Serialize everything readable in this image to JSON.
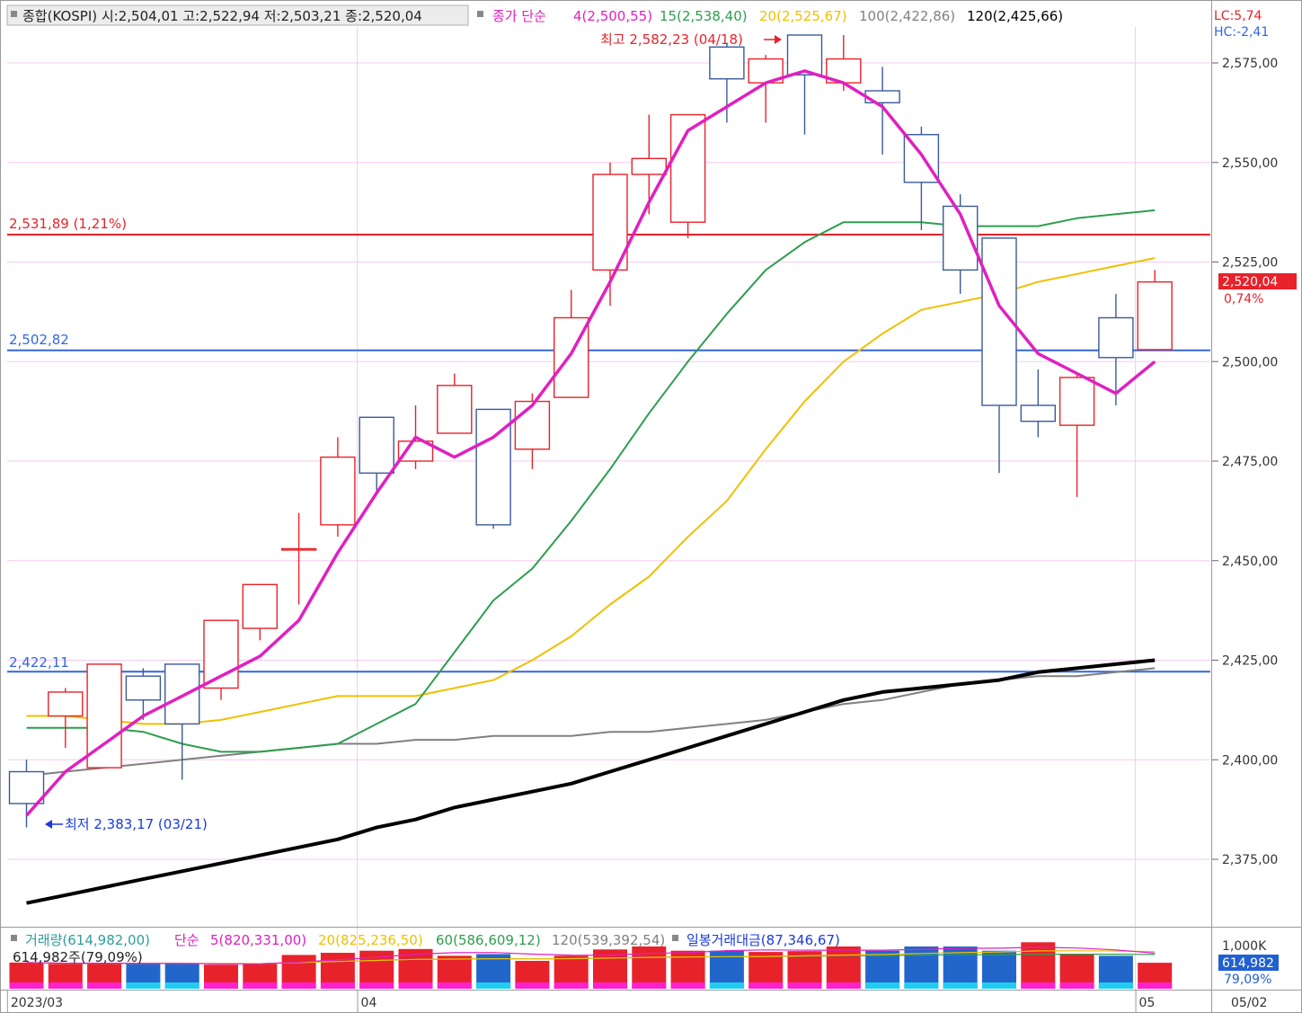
{
  "header": {
    "icon": "square-bullet-icon",
    "title": "종합(KOSPI) 시:2,504,01 고:2,522,94 저:2,503,21 종:2,520,04",
    "ma_title": "종가 단순",
    "ma_items": [
      {
        "label": "4(2,500,55)",
        "color": "#e020c0"
      },
      {
        "label": "15(2,538,40)",
        "color": "#2e9e4e"
      },
      {
        "label": "20(2,525,67)",
        "color": "#f0c000"
      },
      {
        "label": "100(2,422,86)",
        "color": "#808080"
      },
      {
        "label": "120(2,425,66)",
        "color": "#000000"
      }
    ],
    "lc": "LC:5,74",
    "hc": "HC:-2,41"
  },
  "annotations": {
    "high": "최고 2,582,23 (04/18)",
    "low": "최저 2,383,17 (03/21)",
    "red_line_label": "2,531,89 (1,21%)",
    "blue_line1_label": "2,502,82",
    "blue_line2_label": "2,422,11",
    "current_price": "2,520,04",
    "current_pct": "0,74%"
  },
  "volume_header": {
    "vol_label": "거래량(614,982,00)",
    "ma_title": "단순",
    "ma_items": [
      {
        "label": "5(820,331,00)",
        "color": "#e020c0"
      },
      {
        "label": "20(825,236,50)",
        "color": "#f0c000"
      },
      {
        "label": "60(586,609,12)",
        "color": "#2e9e4e"
      },
      {
        "label": "120(539,392,54)",
        "color": "#808080"
      }
    ],
    "amount_label": "일봉거래대금(87,346,67)",
    "shares_label": "614,982주(79,09%)",
    "axis_top": "1,000K",
    "current_vol": "614,982",
    "current_vol_pct": "79,09%"
  },
  "x_axis": {
    "labels": [
      {
        "text": "2023/03",
        "index": 0
      },
      {
        "text": "04",
        "index": 9
      },
      {
        "text": "05",
        "index": 29
      }
    ],
    "right_label": "05/02"
  },
  "colors": {
    "up": "#e8222a",
    "down": "#3a5a9a",
    "ma4": "#e020c0",
    "ma15": "#2e9e4e",
    "ma20": "#f0c000",
    "ma100": "#808080",
    "ma120": "#000000",
    "hline_red": "#e8222a",
    "hline_blue": "#3366dd"
  },
  "chart_data": {
    "type": "candlestick",
    "ylim": [
      2360,
      2585
    ],
    "y_ticks": [
      2375,
      2400,
      2425,
      2450,
      2475,
      2500,
      2525,
      2550,
      2575
    ],
    "y_tick_labels": [
      "2,375,00",
      "2,400,00",
      "2,425,00",
      "2,450,00",
      "2,475,00",
      "2,500,00",
      "2,525,00",
      "2,550,00",
      "2,575,00"
    ],
    "horizontal_lines": [
      {
        "value": 2531.89,
        "color": "red"
      },
      {
        "value": 2502.82,
        "color": "blue"
      },
      {
        "value": 2422.11,
        "color": "blue"
      }
    ],
    "candles": [
      {
        "o": 2397,
        "h": 2400,
        "l": 2383,
        "c": 2389
      },
      {
        "o": 2411,
        "h": 2418,
        "l": 2403,
        "c": 2417
      },
      {
        "o": 2398,
        "h": 2424,
        "l": 2398,
        "c": 2424
      },
      {
        "o": 2421,
        "h": 2423,
        "l": 2410,
        "c": 2415
      },
      {
        "o": 2424,
        "h": 2424,
        "l": 2395,
        "c": 2409
      },
      {
        "o": 2418,
        "h": 2435,
        "l": 2415,
        "c": 2435
      },
      {
        "o": 2433,
        "h": 2444,
        "l": 2430,
        "c": 2444
      },
      {
        "o": 2453,
        "h": 2462,
        "l": 2439,
        "c": 2453
      },
      {
        "o": 2459,
        "h": 2481,
        "l": 2456,
        "c": 2476
      },
      {
        "o": 2486,
        "h": 2486,
        "l": 2467,
        "c": 2472
      },
      {
        "o": 2475,
        "h": 2489,
        "l": 2473,
        "c": 2480
      },
      {
        "o": 2482,
        "h": 2497,
        "l": 2482,
        "c": 2494
      },
      {
        "o": 2488,
        "h": 2488,
        "l": 2458,
        "c": 2459
      },
      {
        "o": 2478,
        "h": 2492,
        "l": 2473,
        "c": 2490
      },
      {
        "o": 2491,
        "h": 2518,
        "l": 2491,
        "c": 2511
      },
      {
        "o": 2523,
        "h": 2550,
        "l": 2514,
        "c": 2547
      },
      {
        "o": 2547,
        "h": 2562,
        "l": 2537,
        "c": 2551
      },
      {
        "o": 2535,
        "h": 2562,
        "l": 2531,
        "c": 2562
      },
      {
        "o": 2579,
        "h": 2580,
        "l": 2560,
        "c": 2571
      },
      {
        "o": 2570,
        "h": 2577,
        "l": 2560,
        "c": 2576
      },
      {
        "o": 2582,
        "h": 2582,
        "l": 2557,
        "c": 2572
      },
      {
        "o": 2570,
        "h": 2582,
        "l": 2568,
        "c": 2576
      },
      {
        "o": 2568,
        "h": 2574,
        "l": 2552,
        "c": 2565
      },
      {
        "o": 2557,
        "h": 2559,
        "l": 2533,
        "c": 2545
      },
      {
        "o": 2539,
        "h": 2542,
        "l": 2517,
        "c": 2523
      },
      {
        "o": 2531,
        "h": 2531,
        "l": 2472,
        "c": 2489
      },
      {
        "o": 2489,
        "h": 2498,
        "l": 2481,
        "c": 2485
      },
      {
        "o": 2484,
        "h": 2497,
        "l": 2466,
        "c": 2496
      },
      {
        "o": 2511,
        "h": 2517,
        "l": 2489,
        "c": 2501
      },
      {
        "o": 2503,
        "h": 2523,
        "l": 2503,
        "c": 2520
      }
    ],
    "ma4": [
      2386,
      2397,
      2404,
      2411,
      2416,
      2421,
      2426,
      2435,
      2452,
      2467,
      2481,
      2476,
      2481,
      2489,
      2502,
      2520,
      2540,
      2558,
      2564,
      2570,
      2573,
      2570,
      2564,
      2552,
      2537,
      2514,
      2502,
      2497,
      2492,
      2500
    ],
    "ma15": [
      2408,
      2408,
      2408,
      2407,
      2404,
      2402,
      2402,
      2403,
      2404,
      2409,
      2414,
      2427,
      2440,
      2448,
      2460,
      2473,
      2487,
      2500,
      2512,
      2523,
      2530,
      2535,
      2535,
      2535,
      2534,
      2534,
      2534,
      2536,
      2537,
      2538
    ],
    "ma20": [
      2411,
      2411,
      2410,
      2409,
      2409,
      2410,
      2412,
      2414,
      2416,
      2416,
      2416,
      2418,
      2420,
      2425,
      2431,
      2439,
      2446,
      2456,
      2465,
      2478,
      2490,
      2500,
      2507,
      2513,
      2515,
      2517,
      2520,
      2522,
      2524,
      2526
    ],
    "ma100": [
      2396,
      2397,
      2398,
      2399,
      2400,
      2401,
      2402,
      2403,
      2404,
      2404,
      2405,
      2405,
      2406,
      2406,
      2406,
      2407,
      2407,
      2408,
      2409,
      2410,
      2412,
      2414,
      2415,
      2417,
      2419,
      2420,
      2421,
      2421,
      2422,
      2423
    ],
    "ma120": [
      2364,
      2366,
      2368,
      2370,
      2372,
      2374,
      2376,
      2378,
      2380,
      2383,
      2385,
      2388,
      2390,
      2392,
      2394,
      2397,
      2400,
      2403,
      2406,
      2409,
      2412,
      2415,
      2417,
      2418,
      2419,
      2420,
      2422,
      2423,
      2424,
      2425
    ],
    "volume": {
      "ylim": [
        0,
        1000000
      ],
      "bars": [
        {
          "v": 620000,
          "up": true
        },
        {
          "v": 590000,
          "up": true
        },
        {
          "v": 600000,
          "up": true
        },
        {
          "v": 590000,
          "up": false
        },
        {
          "v": 600000,
          "up": false
        },
        {
          "v": 570000,
          "up": true
        },
        {
          "v": 590000,
          "up": true
        },
        {
          "v": 800000,
          "up": true
        },
        {
          "v": 850000,
          "up": true
        },
        {
          "v": 900000,
          "up": true
        },
        {
          "v": 940000,
          "up": true
        },
        {
          "v": 780000,
          "up": true
        },
        {
          "v": 820000,
          "up": false
        },
        {
          "v": 660000,
          "up": true
        },
        {
          "v": 780000,
          "up": true
        },
        {
          "v": 930000,
          "up": true
        },
        {
          "v": 1000000,
          "up": true
        },
        {
          "v": 900000,
          "up": true
        },
        {
          "v": 900000,
          "up": false
        },
        {
          "v": 870000,
          "up": true
        },
        {
          "v": 890000,
          "up": true
        },
        {
          "v": 1000000,
          "up": true
        },
        {
          "v": 900000,
          "up": false
        },
        {
          "v": 1000000,
          "up": false
        },
        {
          "v": 1000000,
          "up": false
        },
        {
          "v": 900000,
          "up": false
        },
        {
          "v": 1100000,
          "up": true
        },
        {
          "v": 820000,
          "up": true
        },
        {
          "v": 780000,
          "up": false
        },
        {
          "v": 614982,
          "up": true
        }
      ]
    }
  }
}
